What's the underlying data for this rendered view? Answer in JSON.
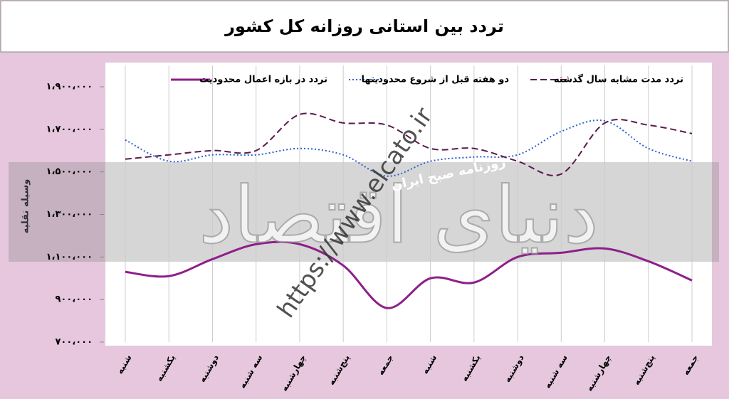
{
  "chart_data": {
    "type": "line",
    "title": "تردد بین استانی روزانه کل کشور",
    "y_label": "وسیله نقلیه",
    "categories": [
      "شنبه",
      "یکشنبه",
      "دوشنبه",
      "سه شنبه",
      "چهارشنبه",
      "پنج‌شنبه",
      "جمعه",
      "شنبه",
      "یکشنبه",
      "دوشنبه",
      "سه شنبه",
      "چهارشنبه",
      "پنج‌شنبه",
      "جمعه"
    ],
    "series": [
      {
        "name": "تردد در بازه اعمال محدودیت",
        "color": "#8e1f8a",
        "style": "solid",
        "values": [
          1030000,
          1010000,
          1090000,
          1160000,
          1160000,
          1060000,
          860000,
          1000000,
          980000,
          1100000,
          1120000,
          1140000,
          1080000,
          990000
        ]
      },
      {
        "name": "دو هفته قبل از شروع محدودیتها",
        "color": "#2b5fcf",
        "style": "dotted",
        "values": [
          1650000,
          1550000,
          1580000,
          1580000,
          1610000,
          1580000,
          1480000,
          1550000,
          1570000,
          1580000,
          1690000,
          1740000,
          1610000,
          1550000
        ]
      },
      {
        "name": "تردد مدت مشابه سال گذشته",
        "color": "#5b1a4e",
        "style": "dashed",
        "values": [
          1560000,
          1580000,
          1600000,
          1600000,
          1770000,
          1730000,
          1720000,
          1610000,
          1610000,
          1550000,
          1490000,
          1730000,
          1720000,
          1680000
        ]
      }
    ],
    "ylim": [
      700000,
      1900000
    ],
    "yticks": [
      {
        "value": 700000,
        "label": "۷۰۰،۰۰۰"
      },
      {
        "value": 900000,
        "label": "۹۰۰،۰۰۰"
      },
      {
        "value": 1100000,
        "label": "۱،۱۰۰،۰۰۰"
      },
      {
        "value": 1300000,
        "label": "۱،۳۰۰،۰۰۰"
      },
      {
        "value": 1500000,
        "label": "۱،۵۰۰،۰۰۰"
      },
      {
        "value": 1700000,
        "label": "۱،۷۰۰،۰۰۰"
      },
      {
        "value": 1900000,
        "label": "۱،۹۰۰،۰۰۰"
      }
    ],
    "grid": true,
    "annotations": [
      "دنیای اقتصاد",
      "https://www.elcato.ir",
      "روزنامه صبح ایران"
    ]
  }
}
